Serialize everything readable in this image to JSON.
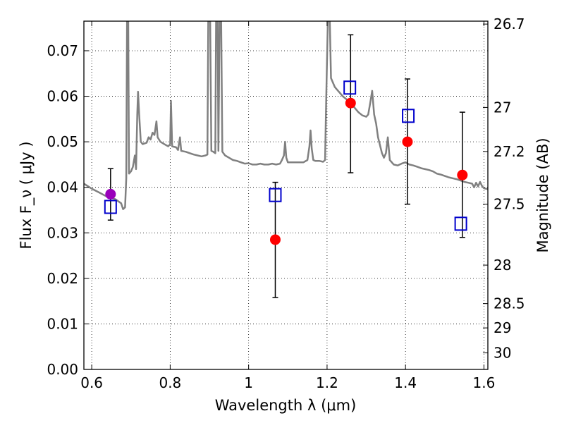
{
  "chart_data": {
    "type": "scatter",
    "xlabel": "Wavelength  λ (μm)",
    "ylabel": "Flux  F_ν  ( μJy )",
    "ylabel_right": "Magnitude (AB)",
    "xlim": [
      0.58,
      1.61
    ],
    "ylim": [
      0.0,
      0.0765
    ],
    "x_ticks": [
      0.6,
      0.8,
      1.0,
      1.2,
      1.4,
      1.6
    ],
    "x_tick_labels": [
      "0.6",
      "0.8",
      "1",
      "1.2",
      "1.4",
      "1.6"
    ],
    "y_ticks": [
      0.0,
      0.01,
      0.02,
      0.03,
      0.04,
      0.05,
      0.06,
      0.07
    ],
    "y_tick_labels": [
      "0.00",
      "0.01",
      "0.02",
      "0.03",
      "0.04",
      "0.05",
      "0.06",
      "0.07"
    ],
    "right_ticks": [
      26.7,
      27.0,
      27.2,
      27.5,
      28.0,
      28.5,
      29.0,
      30.0
    ],
    "right_tick_labels": [
      "26.7",
      "27",
      "27.2",
      "27.5",
      "28",
      "28.5",
      "29",
      "30"
    ],
    "grid": true,
    "grid_style": "dotted",
    "colors": {
      "observed": "#ff0000",
      "observed_first": "#9900bb",
      "model": "#0000cc",
      "spectrum": "#808080",
      "errorbar": "#000000"
    },
    "series": [
      {
        "marker": "filled-circle",
        "points": [
          {
            "x": 0.648,
            "y": 0.0385,
            "yerr_low": 0.0328,
            "yerr_high": 0.0441
          },
          {
            "x": 1.068,
            "y": 0.0285,
            "yerr_low": 0.0158,
            "yerr_high": 0.0411
          },
          {
            "x": 1.26,
            "y": 0.0585,
            "yerr_low": 0.0432,
            "yerr_high": 0.0735
          },
          {
            "x": 1.405,
            "y": 0.05,
            "yerr_low": 0.0363,
            "yerr_high": 0.0638
          },
          {
            "x": 1.545,
            "y": 0.0427,
            "yerr_low": 0.029,
            "yerr_high": 0.0565
          }
        ]
      },
      {
        "marker": "open-square",
        "points": [
          {
            "x": 0.648,
            "y": 0.0357
          },
          {
            "x": 1.068,
            "y": 0.0383
          },
          {
            "x": 1.258,
            "y": 0.0619
          },
          {
            "x": 1.407,
            "y": 0.0557
          },
          {
            "x": 1.541,
            "y": 0.032
          }
        ]
      },
      {
        "marker": "line",
        "points": [
          [
            0.58,
            0.0408
          ],
          [
            0.6,
            0.0397
          ],
          [
            0.62,
            0.0388
          ],
          [
            0.64,
            0.0379
          ],
          [
            0.66,
            0.0374
          ],
          [
            0.675,
            0.0365
          ],
          [
            0.68,
            0.0352
          ],
          [
            0.685,
            0.0356
          ],
          [
            0.688,
            0.042
          ],
          [
            0.69,
            0.0765
          ],
          [
            0.693,
            0.0765
          ],
          [
            0.695,
            0.043
          ],
          [
            0.7,
            0.0435
          ],
          [
            0.705,
            0.0445
          ],
          [
            0.71,
            0.047
          ],
          [
            0.713,
            0.044
          ],
          [
            0.716,
            0.056
          ],
          [
            0.718,
            0.061
          ],
          [
            0.721,
            0.056
          ],
          [
            0.725,
            0.05
          ],
          [
            0.73,
            0.0495
          ],
          [
            0.74,
            0.0498
          ],
          [
            0.745,
            0.051
          ],
          [
            0.75,
            0.0505
          ],
          [
            0.755,
            0.052
          ],
          [
            0.76,
            0.0515
          ],
          [
            0.765,
            0.0545
          ],
          [
            0.768,
            0.051
          ],
          [
            0.775,
            0.05
          ],
          [
            0.785,
            0.0495
          ],
          [
            0.795,
            0.049
          ],
          [
            0.8,
            0.0495
          ],
          [
            0.802,
            0.059
          ],
          [
            0.805,
            0.049
          ],
          [
            0.815,
            0.0488
          ],
          [
            0.82,
            0.0482
          ],
          [
            0.825,
            0.051
          ],
          [
            0.828,
            0.048
          ],
          [
            0.84,
            0.0478
          ],
          [
            0.85,
            0.0475
          ],
          [
            0.86,
            0.0472
          ],
          [
            0.87,
            0.047
          ],
          [
            0.88,
            0.0468
          ],
          [
            0.89,
            0.047
          ],
          [
            0.895,
            0.0472
          ],
          [
            0.897,
            0.0765
          ],
          [
            0.902,
            0.0765
          ],
          [
            0.905,
            0.048
          ],
          [
            0.91,
            0.0478
          ],
          [
            0.915,
            0.0475
          ],
          [
            0.917,
            0.0765
          ],
          [
            0.921,
            0.0765
          ],
          [
            0.923,
            0.048
          ],
          [
            0.926,
            0.0765
          ],
          [
            0.93,
            0.0765
          ],
          [
            0.933,
            0.0478
          ],
          [
            0.94,
            0.047
          ],
          [
            0.95,
            0.0465
          ],
          [
            0.96,
            0.046
          ],
          [
            0.97,
            0.0458
          ],
          [
            0.98,
            0.0455
          ],
          [
            0.99,
            0.0452
          ],
          [
            1.0,
            0.0453
          ],
          [
            1.01,
            0.045
          ],
          [
            1.02,
            0.045
          ],
          [
            1.03,
            0.0452
          ],
          [
            1.04,
            0.045
          ],
          [
            1.05,
            0.045
          ],
          [
            1.06,
            0.0452
          ],
          [
            1.07,
            0.045
          ],
          [
            1.08,
            0.0452
          ],
          [
            1.085,
            0.046
          ],
          [
            1.09,
            0.047
          ],
          [
            1.093,
            0.05
          ],
          [
            1.096,
            0.0465
          ],
          [
            1.1,
            0.0455
          ],
          [
            1.11,
            0.0455
          ],
          [
            1.12,
            0.0455
          ],
          [
            1.13,
            0.0455
          ],
          [
            1.14,
            0.0455
          ],
          [
            1.15,
            0.046
          ],
          [
            1.155,
            0.049
          ],
          [
            1.158,
            0.0525
          ],
          [
            1.161,
            0.0485
          ],
          [
            1.165,
            0.046
          ],
          [
            1.17,
            0.0458
          ],
          [
            1.18,
            0.0458
          ],
          [
            1.19,
            0.0456
          ],
          [
            1.195,
            0.046
          ],
          [
            1.198,
            0.06
          ],
          [
            1.202,
            0.0765
          ],
          [
            1.207,
            0.0765
          ],
          [
            1.21,
            0.064
          ],
          [
            1.22,
            0.062
          ],
          [
            1.23,
            0.061
          ],
          [
            1.24,
            0.06
          ],
          [
            1.25,
            0.0593
          ],
          [
            1.26,
            0.0585
          ],
          [
            1.27,
            0.0575
          ],
          [
            1.28,
            0.0565
          ],
          [
            1.29,
            0.0558
          ],
          [
            1.3,
            0.0555
          ],
          [
            1.305,
            0.056
          ],
          [
            1.31,
            0.0585
          ],
          [
            1.315,
            0.0612
          ],
          [
            1.32,
            0.056
          ],
          [
            1.325,
            0.054
          ],
          [
            1.33,
            0.051
          ],
          [
            1.34,
            0.0475
          ],
          [
            1.345,
            0.0465
          ],
          [
            1.35,
            0.0475
          ],
          [
            1.355,
            0.051
          ],
          [
            1.36,
            0.046
          ],
          [
            1.37,
            0.045
          ],
          [
            1.38,
            0.0448
          ],
          [
            1.39,
            0.0452
          ],
          [
            1.4,
            0.0455
          ],
          [
            1.41,
            0.045
          ],
          [
            1.42,
            0.0448
          ],
          [
            1.43,
            0.0445
          ],
          [
            1.44,
            0.0442
          ],
          [
            1.45,
            0.044
          ],
          [
            1.46,
            0.0438
          ],
          [
            1.47,
            0.0435
          ],
          [
            1.48,
            0.043
          ],
          [
            1.49,
            0.0428
          ],
          [
            1.5,
            0.0425
          ],
          [
            1.51,
            0.0422
          ],
          [
            1.52,
            0.042
          ],
          [
            1.53,
            0.0418
          ],
          [
            1.54,
            0.0415
          ],
          [
            1.55,
            0.0412
          ],
          [
            1.56,
            0.041
          ],
          [
            1.57,
            0.0408
          ],
          [
            1.575,
            0.04
          ],
          [
            1.58,
            0.041
          ],
          [
            1.585,
            0.0402
          ],
          [
            1.59,
            0.0412
          ],
          [
            1.595,
            0.0403
          ],
          [
            1.6,
            0.0398
          ],
          [
            1.61,
            0.0396
          ]
        ]
      }
    ]
  }
}
